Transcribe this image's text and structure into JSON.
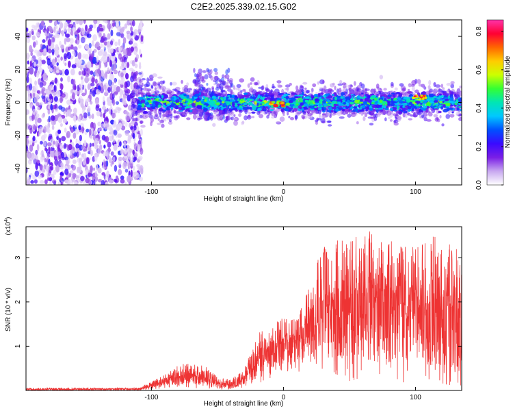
{
  "title": "C2E2.2025.339.02.15.G02",
  "chart_data": [
    {
      "type": "heatmap",
      "xlabel": "Height of straight line (km)",
      "ylabel": "Frequency (Hz)",
      "xlim": [
        -195,
        135
      ],
      "ylim": [
        -50,
        50
      ],
      "x_ticks": [
        -100,
        0,
        100
      ],
      "y_ticks": [
        -40,
        -20,
        0,
        20,
        40
      ],
      "colorbar": {
        "label": "Normalized spectral amplitude",
        "range": [
          0,
          0.86
        ],
        "ticks": [
          "0.0",
          "0.2",
          "0.4",
          "0.6",
          "0.8"
        ],
        "colormap": [
          "#ffffff",
          "#c8a8f0",
          "#7a1ee6",
          "#3a0aff",
          "#0050ff",
          "#00c8ff",
          "#00e6b4",
          "#33ff33",
          "#ccff00",
          "#ffcc00",
          "#ff6600",
          "#ff0033",
          "#ff33aa"
        ]
      },
      "regions": [
        {
          "x_range": [
            -195,
            -115
          ],
          "freq_range": [
            -50,
            50
          ],
          "amplitude": "0.05-0.25 scattered"
        },
        {
          "x_range": [
            -115,
            135
          ],
          "freq_center": 0,
          "freq_halfwidth": 8,
          "amplitude": "0.2-0.6"
        },
        {
          "x_range": [
            -60,
            -50
          ],
          "freq_range": [
            -10,
            20
          ],
          "amplitude": "0.1-0.3"
        },
        {
          "x_center": -5,
          "freq_center": -1,
          "amplitude": 0.8
        },
        {
          "x_center": 103,
          "freq_center": 3,
          "amplitude": 0.8
        }
      ]
    },
    {
      "type": "line",
      "xlabel": "Height of straight line (km)",
      "ylabel": "SNR (10 * v/v)",
      "y_multiplier": "(x10",
      "y_multiplier_exp": "4",
      "y_multiplier_close": ")",
      "xlim": [
        -195,
        135
      ],
      "ylim": [
        0,
        3.7
      ],
      "x_ticks": [
        -100,
        0,
        100
      ],
      "y_ticks": [
        1,
        2,
        3
      ],
      "color": "#ee3333",
      "envelope": {
        "x": [
          -195,
          -110,
          -100,
          -90,
          -80,
          -70,
          -60,
          -50,
          -40,
          -30,
          -20,
          -10,
          0,
          10,
          20,
          30,
          40,
          50,
          60,
          70,
          80,
          90,
          100,
          110,
          120,
          135
        ],
        "y_min": [
          0.0,
          0.0,
          0.02,
          0.05,
          0.05,
          0.05,
          0.03,
          0.02,
          0.02,
          0.05,
          0.15,
          0.25,
          0.3,
          0.4,
          0.4,
          0.45,
          0.3,
          0.2,
          0.15,
          0.1,
          0.1,
          0.15,
          0.2,
          0.15,
          0.1,
          0.1
        ],
        "y_max": [
          0.06,
          0.06,
          0.2,
          0.35,
          0.6,
          0.65,
          0.6,
          0.3,
          0.25,
          0.45,
          1.3,
          1.4,
          1.7,
          1.6,
          2.4,
          3.3,
          3.4,
          3.55,
          3.5,
          3.7,
          3.55,
          3.3,
          3.35,
          3.55,
          3.4,
          3.2
        ],
        "y_mid": [
          0.02,
          0.02,
          0.1,
          0.18,
          0.28,
          0.3,
          0.28,
          0.12,
          0.1,
          0.25,
          0.65,
          0.8,
          0.95,
          1.0,
          1.3,
          1.55,
          1.55,
          1.6,
          1.65,
          1.75,
          1.6,
          1.55,
          1.5,
          1.5,
          1.4,
          1.3
        ]
      }
    }
  ]
}
